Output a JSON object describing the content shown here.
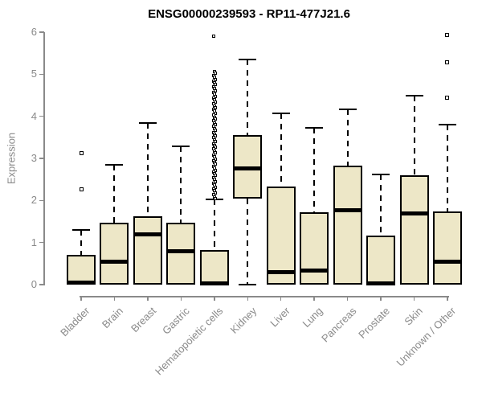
{
  "chart_data": {
    "type": "boxplot",
    "title": "ENSG00000239593 - RP11-477J21.6",
    "ylabel": "Expression",
    "xlabel": "",
    "ylim": [
      0,
      6
    ],
    "yticks": [
      0,
      1,
      2,
      3,
      4,
      5,
      6
    ],
    "grid": false,
    "legend": "none",
    "colors": {
      "box_fill": "#EDE7C7",
      "box_border": "#000000",
      "median": "#000000",
      "whisker": "#000000",
      "axis": "#8a8a8a",
      "tick_label": "#8a8a8a",
      "title": "#000000"
    },
    "categories": [
      "Bladder",
      "Brain",
      "Breast",
      "Gastric",
      "Hematopoietic cells",
      "Kidney",
      "Liver",
      "Lung",
      "Pancreas",
      "Prostate",
      "Skin",
      "Unknown / Other"
    ],
    "series": [
      {
        "name": "Bladder",
        "lo": 0,
        "q1": 0,
        "median": 0.04,
        "q3": 0.7,
        "hi": 1.3,
        "outliers": [
          2.27,
          3.13
        ]
      },
      {
        "name": "Brain",
        "lo": 0,
        "q1": 0,
        "median": 0.55,
        "q3": 1.47,
        "hi": 2.85,
        "outliers": []
      },
      {
        "name": "Breast",
        "lo": 0,
        "q1": 0,
        "median": 1.2,
        "q3": 1.62,
        "hi": 3.84,
        "outliers": []
      },
      {
        "name": "Gastric",
        "lo": 0,
        "q1": 0,
        "median": 0.8,
        "q3": 1.47,
        "hi": 3.29,
        "outliers": []
      },
      {
        "name": "Hematopoietic cells",
        "lo": 0,
        "q1": 0,
        "median": 0.03,
        "q3": 0.82,
        "hi": 2.02,
        "outliers": [
          5.91,
          5.06,
          5.02,
          4.97,
          4.93,
          4.88,
          4.84,
          4.79,
          4.75,
          4.7,
          4.66,
          4.61,
          4.57,
          4.52,
          4.48,
          4.43,
          4.39,
          4.34,
          4.3,
          4.25,
          4.21,
          4.16,
          4.12,
          4.07,
          4.03,
          3.98,
          3.94,
          3.89,
          3.85,
          3.8,
          3.76,
          3.71,
          3.67,
          3.62,
          3.58,
          3.53,
          3.49,
          3.44,
          3.4,
          3.35,
          3.31,
          3.26,
          3.22,
          3.17,
          3.13,
          3.08,
          3.04,
          2.99,
          2.95,
          2.9,
          2.86,
          2.81,
          2.77,
          2.72,
          2.68,
          2.63,
          2.59,
          2.54,
          2.5,
          2.45,
          2.41,
          2.36,
          2.32,
          2.27,
          2.23,
          2.18,
          2.14,
          2.09,
          2.05
        ]
      },
      {
        "name": "Kidney",
        "lo": 0,
        "q1": 2.05,
        "median": 2.77,
        "q3": 3.56,
        "hi": 5.35,
        "outliers": []
      },
      {
        "name": "Liver",
        "lo": 0,
        "q1": 0,
        "median": 0.3,
        "q3": 2.33,
        "hi": 4.07,
        "outliers": []
      },
      {
        "name": "Lung",
        "lo": 0,
        "q1": 0,
        "median": 0.33,
        "q3": 1.72,
        "hi": 3.73,
        "outliers": []
      },
      {
        "name": "Pancreas",
        "lo": 0,
        "q1": 0,
        "median": 1.76,
        "q3": 2.83,
        "hi": 4.17,
        "outliers": []
      },
      {
        "name": "Prostate",
        "lo": 0,
        "q1": 0,
        "median": 0.03,
        "q3": 1.17,
        "hi": 2.62,
        "outliers": []
      },
      {
        "name": "Skin",
        "lo": 0,
        "q1": 0,
        "median": 1.7,
        "q3": 2.6,
        "hi": 4.49,
        "outliers": []
      },
      {
        "name": "Unknown / Other",
        "lo": 0,
        "q1": 0,
        "median": 0.55,
        "q3": 1.74,
        "hi": 3.8,
        "outliers": [
          4.45,
          5.29,
          5.94
        ]
      }
    ]
  }
}
